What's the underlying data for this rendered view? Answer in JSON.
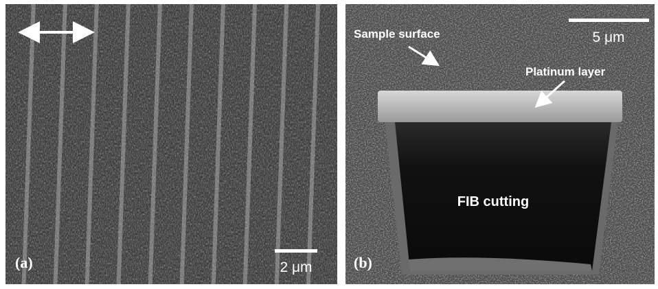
{
  "panels": [
    {
      "label": "(a)",
      "scale_bar": "2 μm"
    },
    {
      "label": "(b)",
      "scale_bar": "5 μm",
      "annotations": [
        "Sample surface",
        "Platinum layer",
        "FIB cutting"
      ]
    }
  ]
}
